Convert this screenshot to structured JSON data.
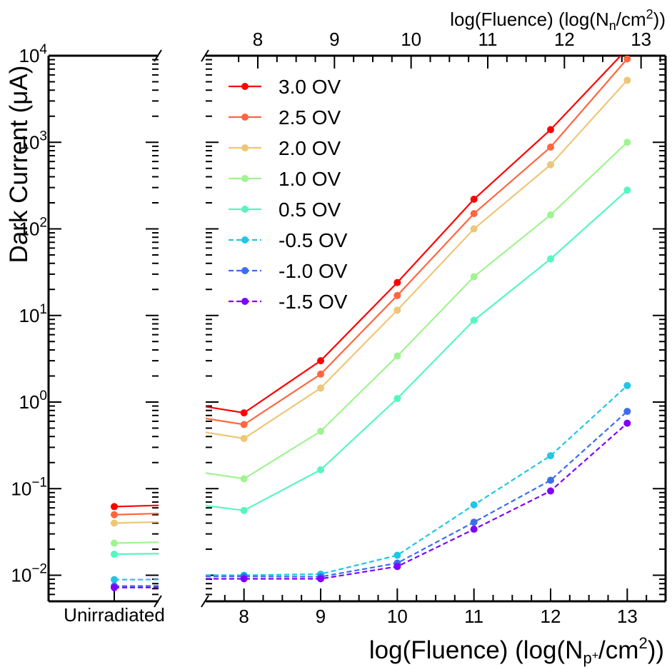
{
  "chart_data": {
    "type": "line",
    "ylabel": "Dark Current (μA)",
    "xlabel": "log(Fluence) (log(Np+/cm2))",
    "xlabel_top": "log(Fluence) (log(Nn/cm2))",
    "yscale": "log",
    "ylim": [
      0.005,
      10000
    ],
    "xlim_main": [
      7.5,
      13.5
    ],
    "x": [
      8,
      9,
      10,
      11,
      12,
      13
    ],
    "x_tick_labels": [
      "8",
      "9",
      "10",
      "11",
      "12",
      "13"
    ],
    "top_tick_values": [
      8,
      9,
      10,
      11,
      12,
      13
    ],
    "top_tick_positions": [
      8.18,
      9.18,
      10.18,
      11.18,
      12.18,
      13.18
    ],
    "y_tick_labels": [
      "10^-2",
      "10^-1",
      "10^0",
      "10^1",
      "10^2",
      "10^3",
      "10^4"
    ],
    "left_panel_label": "Unirradiated",
    "legend_position": "top-left",
    "series": [
      {
        "name": "3.0 OV",
        "color": "#ff0000",
        "dashed": false,
        "unirradiated": 0.062,
        "values": [
          0.75,
          3.0,
          24,
          220,
          1400,
          12000
        ]
      },
      {
        "name": "2.5 OV",
        "color": "#ff6640",
        "dashed": false,
        "unirradiated": 0.05,
        "values": [
          0.55,
          2.1,
          17,
          150,
          880,
          9200
        ]
      },
      {
        "name": "2.0 OV",
        "color": "#eec676",
        "dashed": false,
        "unirradiated": 0.04,
        "values": [
          0.38,
          1.45,
          11.5,
          100,
          550,
          5200
        ]
      },
      {
        "name": "1.0 OV",
        "color": "#a0f490",
        "dashed": false,
        "unirradiated": 0.0235,
        "values": [
          0.13,
          0.46,
          3.4,
          28,
          145,
          1000
        ]
      },
      {
        "name": "0.5 OV",
        "color": "#56f7be",
        "dashed": false,
        "unirradiated": 0.0175,
        "values": [
          0.056,
          0.165,
          1.1,
          8.8,
          45,
          280
        ]
      },
      {
        "name": "-0.5 OV",
        "color": "#1cc8e6",
        "dashed": true,
        "unirradiated": 0.0089,
        "values": [
          0.01,
          0.0103,
          0.017,
          0.065,
          0.24,
          1.55
        ]
      },
      {
        "name": "-1.0 OV",
        "color": "#3c6eec",
        "dashed": true,
        "unirradiated": 0.0075,
        "values": [
          0.0097,
          0.0096,
          0.0138,
          0.041,
          0.125,
          0.78
        ]
      },
      {
        "name": "-1.5 OV",
        "color": "#8000ff",
        "dashed": true,
        "unirradiated": 0.0072,
        "values": [
          0.0091,
          0.0091,
          0.0126,
          0.034,
          0.094,
          0.57
        ]
      }
    ]
  }
}
